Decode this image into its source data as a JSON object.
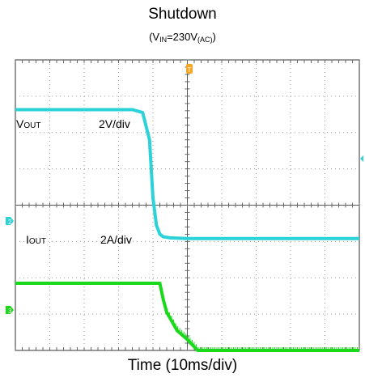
{
  "title": "Shutdown",
  "subtitle": {
    "prefix": "(V",
    "in_sub": "IN",
    "mid": "=230V",
    "ac_sub": "(AC)",
    "suffix": ")"
  },
  "xlabel": "Time (10ms/div)",
  "chart_data": {
    "type": "line",
    "title": "Shutdown",
    "subtitle": "(VIN=230V(AC))",
    "xlabel": "Time (10ms/div)",
    "x_unit": "ms",
    "divisions": {
      "x": 10,
      "y": 8
    },
    "grid": true,
    "series": [
      {
        "name": "VOUT",
        "label_main": "V",
        "label_sub": "OUT",
        "scale": "2V/div",
        "color": "#2bd2d8",
        "x": [
          -50,
          -16,
          -13,
          -11,
          -10,
          -9,
          -8,
          -7,
          -5,
          0,
          50
        ],
        "y_div": [
          2.63,
          2.63,
          2.55,
          1.8,
          0.2,
          -0.55,
          -0.8,
          -0.87,
          -0.9,
          -0.92,
          -0.92
        ]
      },
      {
        "name": "IOUT",
        "label_main": "I",
        "label_sub": "OUT",
        "scale": "2A/div",
        "color": "#1ad81a",
        "x": [
          -50,
          -8,
          -7,
          -6,
          -3,
          0,
          2,
          3,
          50
        ],
        "y_div": [
          -2.15,
          -2.15,
          -2.6,
          -2.95,
          -3.45,
          -3.7,
          -3.9,
          -4.0,
          -4.0
        ]
      }
    ]
  }
}
